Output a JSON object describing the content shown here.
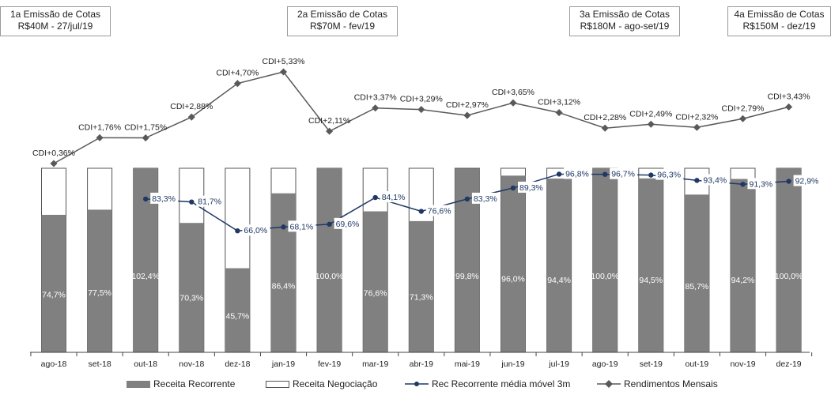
{
  "emissions": [
    {
      "title": "1a Emissão de Cotas",
      "detail": "R$40M - 27/jul/19"
    },
    {
      "title": "2a Emissão de Cotas",
      "detail": "R$70M - fev/19"
    },
    {
      "title": "3a Emissão de Cotas",
      "detail": "R$180M - ago-set/19"
    },
    {
      "title": "4a Emissão de Cotas",
      "detail": "R$150M - dez/19"
    }
  ],
  "chart_data": {
    "type": "bar",
    "categories": [
      "ago-18",
      "set-18",
      "out-18",
      "nov-18",
      "dez-18",
      "jan-19",
      "fev-19",
      "mar-19",
      "abr-19",
      "mai-19",
      "jun-19",
      "jul-19",
      "ago-19",
      "set-19",
      "out-19",
      "nov-19",
      "dez-19"
    ],
    "series": [
      {
        "name": "Receita Recorrente",
        "kind": "stacked-bar",
        "values": [
          74.7,
          77.5,
          102.4,
          70.3,
          45.7,
          86.4,
          100.0,
          76.6,
          71.3,
          99.8,
          96.0,
          94.4,
          100.0,
          94.5,
          85.7,
          94.2,
          100.0
        ],
        "labels": [
          "74,7%",
          "77,5%",
          "102,4%",
          "70,3%",
          "45,7%",
          "86,4%",
          "100,0%",
          "76,6%",
          "71,3%",
          "99,8%",
          "96,0%",
          "94,4%",
          "100,0%",
          "94,5%",
          "85,7%",
          "94,2%",
          "100,0%"
        ]
      },
      {
        "name": "Receita Negociação",
        "kind": "stacked-bar-remainder"
      },
      {
        "name": "Rec Recorrente média móvel 3m",
        "kind": "line",
        "values": [
          null,
          null,
          83.3,
          81.7,
          66.0,
          68.1,
          69.6,
          84.1,
          76.6,
          83.3,
          89.3,
          96.8,
          96.7,
          96.3,
          93.4,
          91.3,
          92.9
        ],
        "labels": [
          "",
          "",
          "83,3%",
          "81,7%",
          "66,0%",
          "68,1%",
          "69,6%",
          "84,1%",
          "76,6%",
          "83,3%",
          "89,3%",
          "96,8%",
          "96,7%",
          "96,3%",
          "93,4%",
          "91,3%",
          "92,9%"
        ]
      },
      {
        "name": "Rendimentos Mensais",
        "kind": "line-upper",
        "values": [
          0.36,
          1.76,
          1.75,
          2.88,
          4.7,
          5.33,
          2.11,
          3.37,
          3.29,
          2.97,
          3.65,
          3.12,
          2.28,
          2.49,
          2.32,
          2.79,
          3.43
        ],
        "labels": [
          "CDI+0,36%",
          "CDI+1,76%",
          "CDI+1,75%",
          "CDI+2,88%",
          "CDI+4,70%",
          "CDI+5,33%",
          "CDI+2,11%",
          "CDI+3,37%",
          "CDI+3,29%",
          "CDI+2,97%",
          "CDI+3,65%",
          "CDI+3,12%",
          "CDI+2,28%",
          "CDI+2,49%",
          "CDI+2,32%",
          "CDI+2,79%",
          "CDI+3,43%"
        ]
      }
    ],
    "legend_position": "bottom",
    "colors": {
      "bar": "#808080",
      "ma_line": "#1f3864",
      "rend_line": "#595959",
      "outline": "#555555"
    }
  },
  "legend": {
    "recorrente": "Receita Recorrente",
    "negociacao": "Receita Negociação",
    "media": "Rec Recorrente média móvel 3m",
    "rendimentos": "Rendimentos Mensais"
  }
}
